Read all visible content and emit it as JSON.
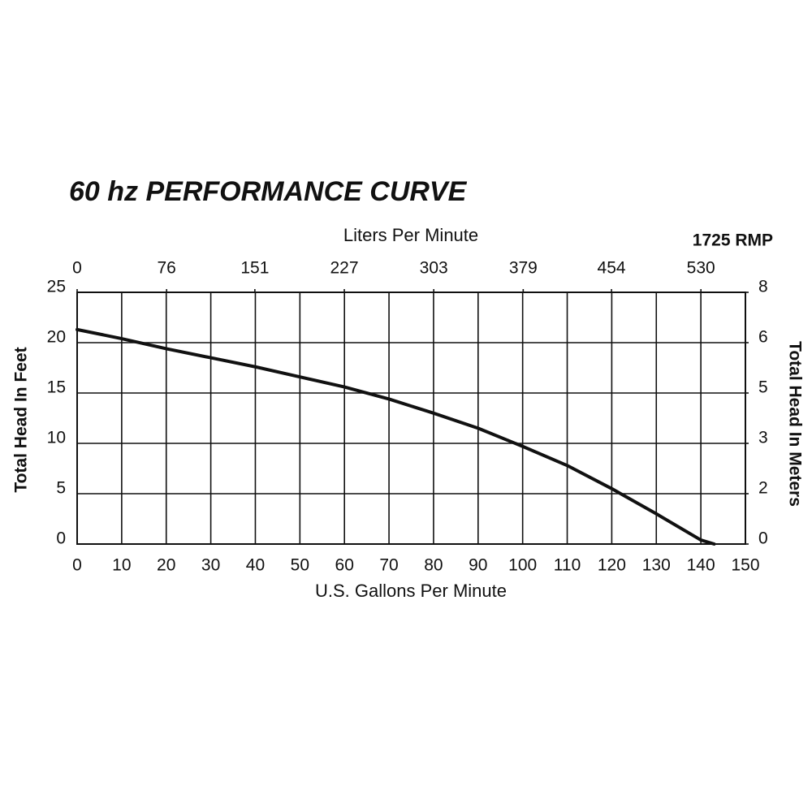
{
  "chart_data": {
    "type": "line",
    "title": "60 hz PERFORMANCE CURVE",
    "subtitle": "1725 RMP",
    "x_label": "U.S. Gallons Per Minute",
    "x2_label": "Liters Per Minute",
    "y_label": "Total Head In Feet",
    "y2_label": "Total Head In Meters",
    "xlim": [
      0,
      150
    ],
    "xticks": [
      0,
      10,
      20,
      30,
      40,
      50,
      60,
      70,
      80,
      90,
      100,
      110,
      120,
      130,
      140,
      150
    ],
    "x2lim": [
      0,
      567.8
    ],
    "x2ticks": [
      0,
      76,
      151,
      227,
      303,
      379,
      454,
      530
    ],
    "ylim": [
      0,
      25
    ],
    "yticks": [
      0,
      5,
      10,
      15,
      20,
      25
    ],
    "y2lim": [
      0,
      7.62
    ],
    "y2ticks": [
      {
        "value": 0,
        "label": "0"
      },
      {
        "value": 1.524,
        "label": "2"
      },
      {
        "value": 3.048,
        "label": "3"
      },
      {
        "value": 4.572,
        "label": "5"
      },
      {
        "value": 6.096,
        "label": "6"
      },
      {
        "value": 7.62,
        "label": "8"
      }
    ],
    "grid": true,
    "series": [
      {
        "color": "#111111",
        "x": [
          0,
          10,
          20,
          30,
          40,
          50,
          60,
          70,
          80,
          90,
          100,
          110,
          120,
          130,
          140,
          143
        ],
        "values": [
          21.3,
          20.4,
          19.4,
          18.5,
          17.6,
          16.6,
          15.6,
          14.4,
          13,
          11.5,
          9.7,
          7.8,
          5.5,
          3,
          0.4,
          0
        ]
      }
    ]
  }
}
